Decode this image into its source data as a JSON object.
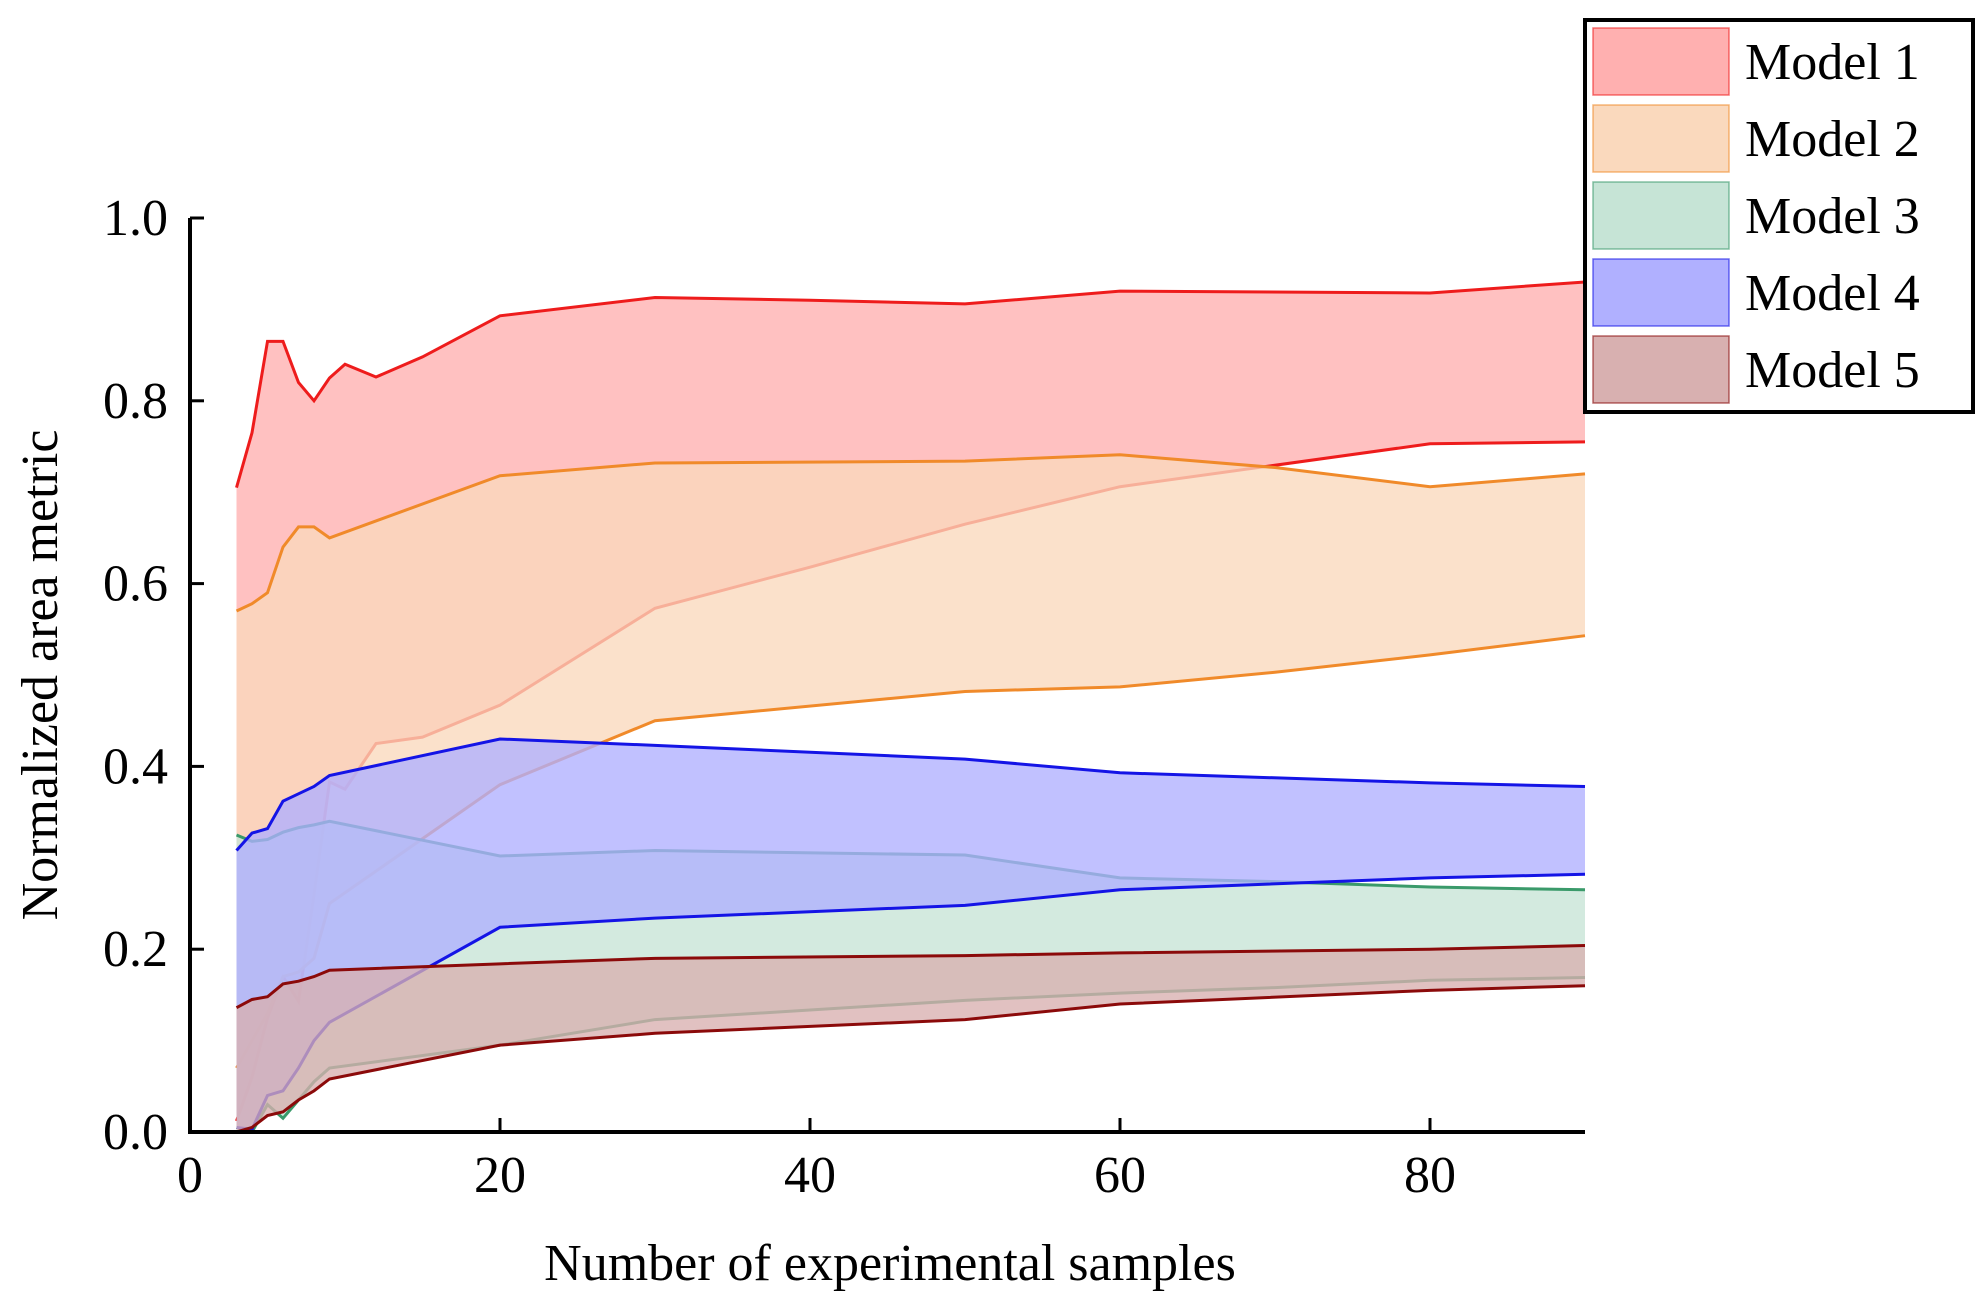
{
  "chart_data": {
    "type": "area",
    "title": "",
    "xlabel": "Number of experimental samples",
    "ylabel": "Normalized area metric",
    "xlim": [
      0,
      90
    ],
    "ylim": [
      0,
      1.0
    ],
    "xticks": [
      "0",
      "20",
      "40",
      "60",
      "80"
    ],
    "xtick_values": [
      0,
      20,
      40,
      60,
      80
    ],
    "yticks": [
      "0.0",
      "0.2",
      "0.4",
      "0.6",
      "0.8",
      "1.0"
    ],
    "ytick_values": [
      0,
      0.2,
      0.4,
      0.6,
      0.8,
      1.0
    ],
    "grid": false,
    "legend_position": "top-right",
    "series": [
      {
        "name": "Model 1",
        "fill": "#ffb0b0",
        "line": "#ee1c1c",
        "x": [
          3,
          4,
          5,
          6,
          7,
          8,
          9,
          10,
          12,
          15,
          20,
          30,
          40,
          50,
          60,
          80,
          90
        ],
        "upper": [
          0.705,
          0.765,
          0.865,
          0.865,
          0.82,
          0.8,
          0.825,
          0.84,
          0.826,
          0.848,
          0.893,
          0.913,
          0.91,
          0.906,
          0.92,
          0.918,
          0.93
        ],
        "lower": [
          0.012,
          0.06,
          0.125,
          0.17,
          0.143,
          0.26,
          0.383,
          0.375,
          0.425,
          0.432,
          0.467,
          0.573,
          0.618,
          0.665,
          0.706,
          0.753,
          0.755
        ]
      },
      {
        "name": "Model 2",
        "fill": "#fad9bd",
        "line": "#f08a2a",
        "x": [
          3,
          4,
          5,
          6,
          7,
          8,
          9,
          20,
          30,
          50,
          60,
          70,
          80,
          90
        ],
        "upper": [
          0.57,
          0.578,
          0.59,
          0.64,
          0.662,
          0.662,
          0.65,
          0.718,
          0.732,
          0.734,
          0.741,
          0.727,
          0.706,
          0.72
        ],
        "lower": [
          0.07,
          0.1,
          0.13,
          0.17,
          0.175,
          0.19,
          0.25,
          0.38,
          0.45,
          0.482,
          0.487,
          0.503,
          0.522,
          0.543
        ]
      },
      {
        "name": "Model 3",
        "fill": "#c6e4d6",
        "line": "#3a9a6a",
        "x": [
          3,
          4,
          5,
          6,
          7,
          8,
          9,
          20,
          30,
          50,
          60,
          70,
          80,
          90
        ],
        "upper": [
          0.325,
          0.318,
          0.32,
          0.328,
          0.333,
          0.336,
          0.34,
          0.302,
          0.308,
          0.303,
          0.278,
          0.274,
          0.268,
          0.265
        ],
        "lower": [
          0.005,
          0.0,
          0.03,
          0.015,
          0.035,
          0.055,
          0.07,
          0.095,
          0.123,
          0.144,
          0.152,
          0.158,
          0.166,
          0.169
        ]
      },
      {
        "name": "Model 4",
        "fill": "#b0b0ff",
        "line": "#1414e6",
        "x": [
          3,
          4,
          5,
          6,
          7,
          8,
          9,
          20,
          30,
          50,
          60,
          80,
          90
        ],
        "upper": [
          0.308,
          0.327,
          0.332,
          0.362,
          0.37,
          0.378,
          0.39,
          0.43,
          0.423,
          0.408,
          0.393,
          0.382,
          0.378
        ],
        "lower": [
          0.005,
          0.003,
          0.04,
          0.045,
          0.07,
          0.1,
          0.12,
          0.224,
          0.234,
          0.248,
          0.265,
          0.278,
          0.282
        ]
      },
      {
        "name": "Model 5",
        "fill": "#d8b0b0",
        "line": "#8b0a0a",
        "x": [
          3,
          4,
          5,
          6,
          7,
          8,
          9,
          20,
          30,
          50,
          60,
          80,
          90
        ],
        "upper": [
          0.136,
          0.145,
          0.148,
          0.162,
          0.165,
          0.17,
          0.177,
          0.184,
          0.19,
          0.193,
          0.196,
          0.2,
          0.204
        ],
        "lower": [
          0.0,
          0.005,
          0.018,
          0.022,
          0.035,
          0.045,
          0.058,
          0.095,
          0.108,
          0.123,
          0.14,
          0.155,
          0.16
        ]
      }
    ]
  }
}
